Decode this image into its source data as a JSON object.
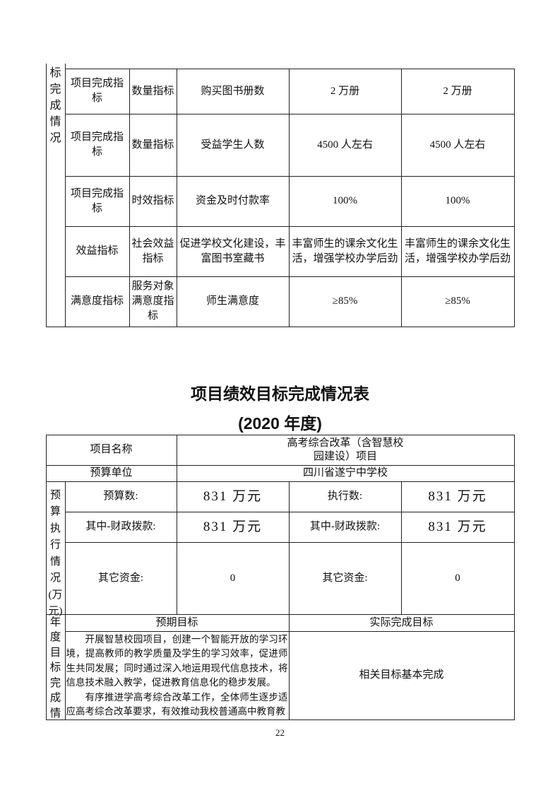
{
  "top_table": {
    "side_label": "标完成情况",
    "rows": [
      {
        "level1": "项目完成指标",
        "level2": "数量指标",
        "indicator": "购买图书册数",
        "target": "2 万册",
        "actual": "2 万册"
      },
      {
        "level1": "项目完成指标",
        "level2": "数量指标",
        "indicator": "受益学生人数",
        "target": "4500 人左右",
        "actual": "4500 人左右"
      },
      {
        "level1": "项目完成指标",
        "level2": "时效指标",
        "indicator": "资金及时付款率",
        "target": "100%",
        "actual": "100%"
      },
      {
        "level1": "效益指标",
        "level2": "社会效益指标",
        "indicator": "促进学校文化建设，丰富图书室藏书",
        "target": "丰富师生的课余文化生活，增强学校办学后劲",
        "actual": "丰富师生的课余文化生活，增强学校办学后劲"
      },
      {
        "level1": "满意度指标",
        "level2": "服务对象满意度指标",
        "indicator": "师生满意度",
        "target": "≥85%",
        "actual": "≥85%"
      }
    ]
  },
  "section": {
    "title": "项目绩效目标完成情况表",
    "subtitle": "(2020 年度)"
  },
  "bottom_table": {
    "project_name_label": "项目名称",
    "project_name": "高考综合改革（含智慧校园建设）项目",
    "budget_unit_label": "预算单位",
    "budget_unit": "四川省遂宁中学校",
    "budget_side_label": "预算执行情况(万元)",
    "budget_label": "预算数:",
    "budget_value": "831 万元",
    "executed_label": "执行数:",
    "executed_value": "831 万元",
    "fiscal_label_1": "其中-财政拨款:",
    "fiscal_value_1": "831 万元",
    "fiscal_label_2": "其中-财政拨款:",
    "fiscal_value_2": "831 万元",
    "other_label_1": "其它资金:",
    "other_value_1": "0",
    "other_label_2": "其它资金:",
    "other_value_2": "0",
    "goal_side_label": "年度目标完成情",
    "expected_header": "预期目标",
    "actual_header": "实际完成目标",
    "expected_p1": "开展智慧校园项目，创建一个智能开放的学习环境，提高教师的教学质量及学生的学习效率，促进师生共同发展；同时通过深入地运用现代信息技术，将信息技术融入教学，促进教育信息化的稳步发展。",
    "expected_p2": "有序推进学高考综合改革工作，全体师生逐步适应高考综合改革要求，有效推动我校普通高中教育教",
    "actual_text": "相关目标基本完成"
  },
  "page_number": "22"
}
